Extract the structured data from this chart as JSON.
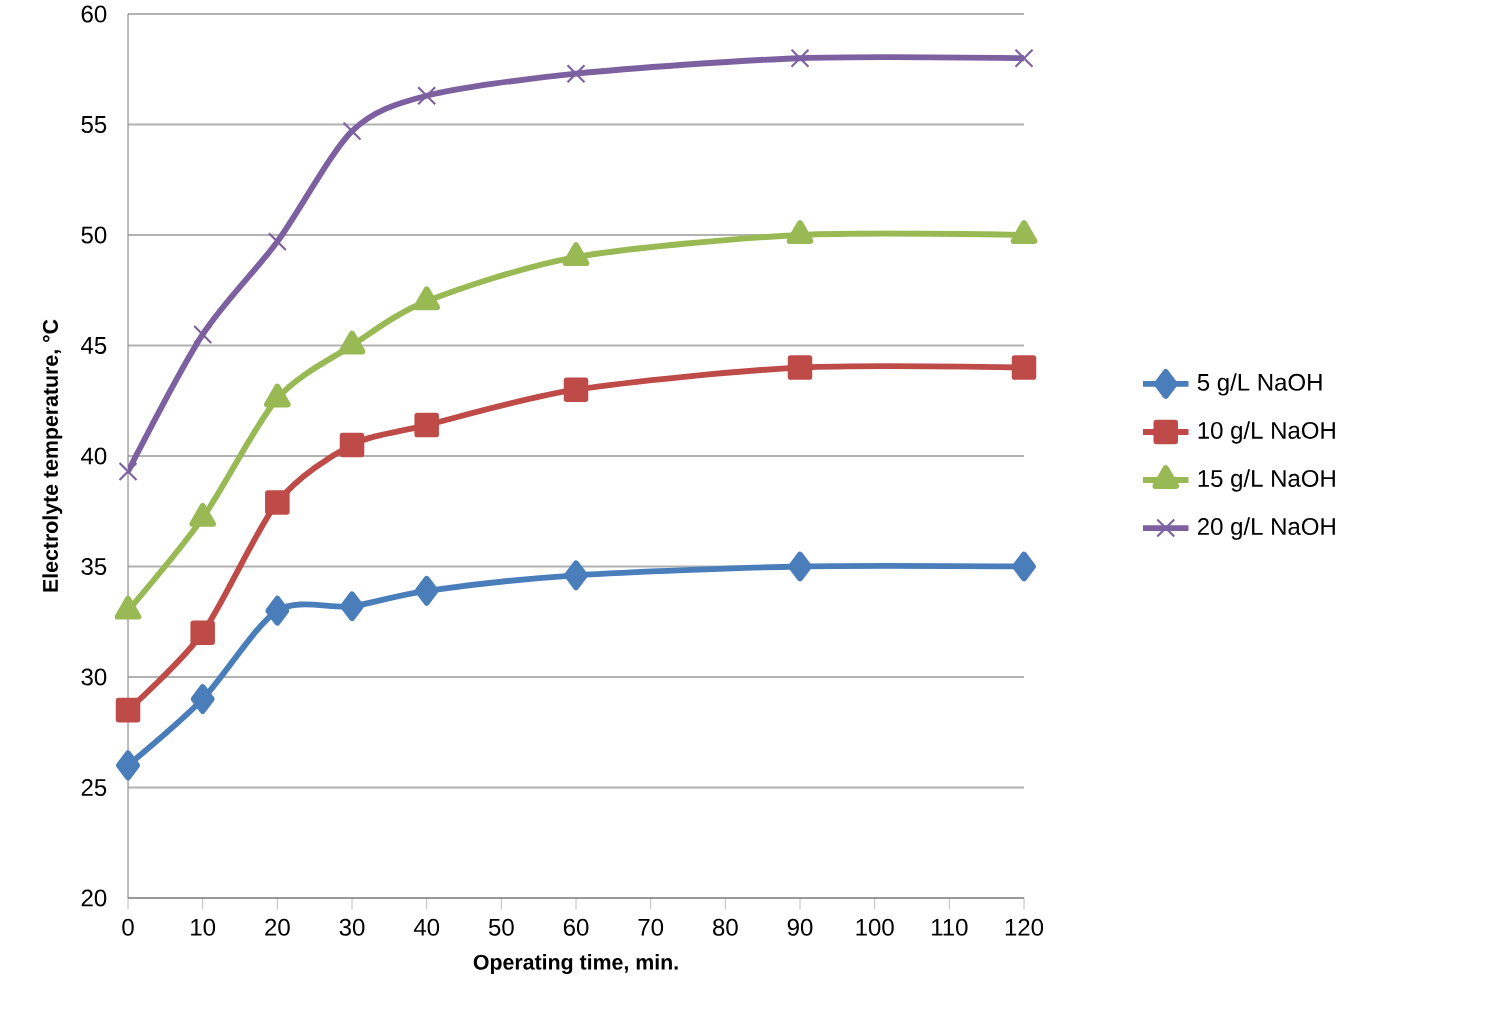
{
  "chart_data": {
    "type": "line",
    "xlabel": "Operating time, min.",
    "ylabel": "Electrolyte temperature, °C",
    "x": [
      0,
      10,
      20,
      30,
      40,
      60,
      90,
      120
    ],
    "xlim": [
      0,
      120
    ],
    "xticks": [
      0,
      10,
      20,
      30,
      40,
      50,
      60,
      70,
      80,
      90,
      100,
      110,
      120
    ],
    "ylim": [
      20,
      60
    ],
    "yticks": [
      20,
      25,
      30,
      35,
      40,
      45,
      50,
      55,
      60
    ],
    "grid": "y",
    "legend": "right",
    "series": [
      {
        "name": "5 g/L NaOH",
        "color": "#4a7ebb",
        "marker": "diamond",
        "values": [
          26,
          29,
          33,
          33.2,
          33.9,
          34.6,
          35,
          35
        ]
      },
      {
        "name": "10 g/L NaOH",
        "color": "#be4b48",
        "marker": "square",
        "values": [
          28.5,
          32,
          37.9,
          40.5,
          41.4,
          43,
          44,
          44
        ]
      },
      {
        "name": "15 g/L NaOH",
        "color": "#98b954",
        "marker": "triangle",
        "values": [
          33,
          37.2,
          42.6,
          45,
          47,
          49,
          50,
          50
        ]
      },
      {
        "name": "20 g/L NaOH",
        "color": "#7d60a0",
        "marker": "cross",
        "values": [
          39.3,
          45.5,
          49.7,
          54.7,
          56.3,
          57.3,
          58,
          58
        ]
      }
    ]
  }
}
